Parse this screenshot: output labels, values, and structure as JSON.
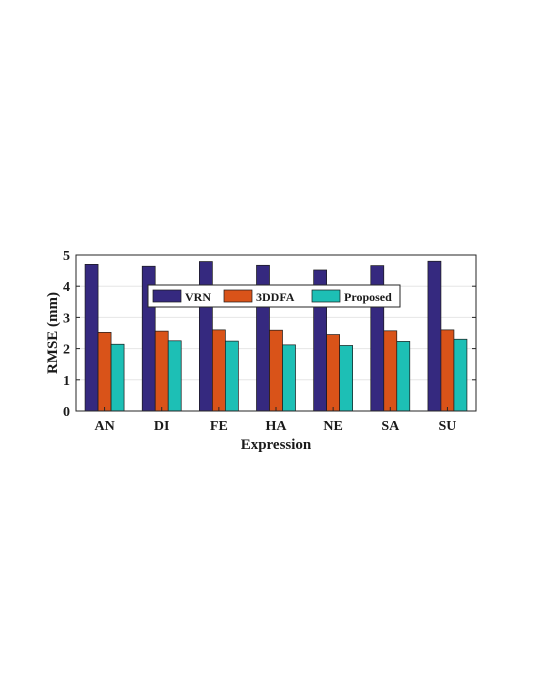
{
  "chart_data": {
    "type": "bar",
    "xlabel": "Expression",
    "ylabel": "RMSE (mm)",
    "categories": [
      "AN",
      "DI",
      "FE",
      "HA",
      "NE",
      "SA",
      "SU"
    ],
    "series": [
      {
        "name": "VRN",
        "color": "#35297F",
        "values": [
          4.7,
          4.64,
          4.79,
          4.67,
          4.52,
          4.66,
          4.8
        ]
      },
      {
        "name": "3DDFA",
        "color": "#D95319",
        "values": [
          2.52,
          2.56,
          2.6,
          2.59,
          2.45,
          2.57,
          2.6
        ]
      },
      {
        "name": "Proposed",
        "color": "#1DBFB5",
        "values": [
          2.14,
          2.25,
          2.24,
          2.12,
          2.1,
          2.23,
          2.3
        ]
      }
    ],
    "ylim": [
      0,
      5
    ],
    "yticks": [
      "0",
      "1",
      "2",
      "3",
      "4",
      "5"
    ],
    "grid": true,
    "legend": {
      "placement": "top-center",
      "orientation": "horizontal"
    }
  }
}
